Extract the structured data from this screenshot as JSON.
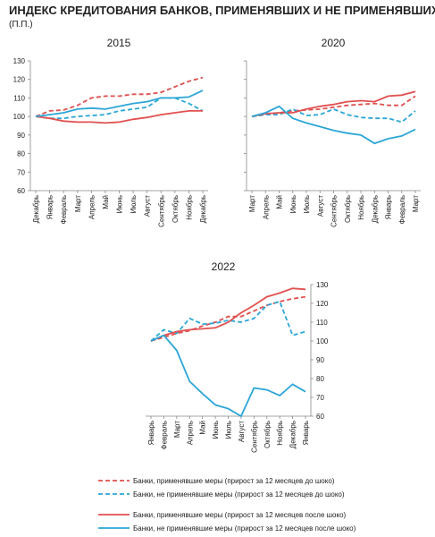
{
  "title": "ИНДЕКС КРЕДИТОВАНИЯ БАНКОВ, ПРИМЕНЯВШИХ И НЕ ПРИМЕНЯВШИХ МЕРЫ",
  "subtitle": "(П.П.)",
  "legend": [
    {
      "name": "Банки, применявшие меры (прирост за 12 месяцев до шоко)",
      "color": "#e0504f",
      "dashed": true
    },
    {
      "name": "Банки, не применявшие меры (прирост за 12 месяцев до шоко)",
      "color": "#2ba6d6",
      "dashed": true
    },
    {
      "name": "Банки, применявшие меры (прирост за 12 месяцев после шоко)",
      "color": "#e0504f",
      "dashed": false
    },
    {
      "name": "Банки, не применявшие меры (прирост за 12 месяцев после шоко)",
      "color": "#2ba6d6",
      "dashed": false
    }
  ],
  "chart_data": [
    {
      "type": "line",
      "title": "2015",
      "yaxis": "left",
      "ytick_labels": true,
      "categories": [
        "Декабрь",
        "Январь",
        "Февраль",
        "Март",
        "Апрель",
        "Май",
        "Июнь",
        "Июль",
        "Август",
        "Сентябрь",
        "Октябрь",
        "Ноябрь",
        "Декабрь"
      ],
      "ylim": [
        60,
        130
      ],
      "yticks": [
        60,
        70,
        80,
        90,
        100,
        110,
        120,
        130
      ],
      "series": [
        {
          "values": [
            100,
            103,
            103.5,
            106,
            110,
            111,
            111,
            112,
            112,
            113,
            116,
            119,
            121
          ]
        },
        {
          "values": [
            100,
            99,
            99,
            100,
            100.5,
            101,
            103,
            104,
            105,
            110,
            110,
            107,
            103
          ]
        },
        {
          "values": [
            100,
            99,
            97.5,
            97,
            97,
            96.5,
            97,
            98.5,
            99.5,
            101,
            102,
            103,
            103
          ]
        },
        {
          "values": [
            100,
            101,
            102,
            104,
            104.5,
            104,
            105.5,
            107,
            108,
            110,
            110,
            110.5,
            114
          ]
        }
      ]
    },
    {
      "type": "line",
      "title": "2020",
      "yaxis": "left",
      "ytick_labels": false,
      "categories": [
        "Март",
        "Апрель",
        "Май",
        "Июнь",
        "Июль",
        "Август",
        "Сентябрь",
        "Октябрь",
        "Ноябрь",
        "Декабрь",
        "Январь",
        "Февраль",
        "Март"
      ],
      "ylim": [
        60,
        130
      ],
      "yticks": [
        60,
        70,
        80,
        90,
        100,
        110,
        120,
        130
      ],
      "series": [
        {
          "values": [
            100,
            101,
            102,
            103,
            103.5,
            104,
            105,
            106,
            106.5,
            107,
            106,
            106,
            111
          ]
        },
        {
          "values": [
            100,
            101,
            101,
            104,
            100.5,
            101,
            104,
            101,
            99.5,
            99,
            99,
            97,
            103
          ]
        },
        {
          "values": [
            100,
            101.5,
            102,
            102,
            104,
            105.5,
            106.5,
            108,
            108.5,
            108,
            111,
            111.5,
            113.5
          ]
        },
        {
          "values": [
            100,
            102,
            105.5,
            99,
            96.5,
            94.5,
            92.5,
            91,
            90,
            85.5,
            88,
            89.5,
            93
          ]
        }
      ]
    },
    {
      "type": "line",
      "title": "2022",
      "yaxis": "right",
      "ytick_labels": true,
      "categories": [
        "Январь",
        "Февраль",
        "Март",
        "Апрель",
        "Май",
        "Июнь",
        "Июль",
        "Август",
        "Сентябрь",
        "Октябрь",
        "Ноябрь",
        "Декабрь",
        "Январь"
      ],
      "ylim": [
        60,
        130
      ],
      "yticks": [
        60,
        70,
        80,
        90,
        100,
        110,
        120,
        130
      ],
      "series": [
        {
          "values": [
            100,
            102,
            104,
            105.5,
            108,
            110,
            113,
            113,
            116,
            119,
            121,
            122.5,
            123.5
          ]
        },
        {
          "values": [
            100,
            106,
            104,
            112,
            109,
            109.5,
            111,
            110,
            112,
            119,
            121,
            103,
            105
          ]
        },
        {
          "values": [
            100,
            103,
            105,
            106,
            106.5,
            107,
            110,
            115,
            119,
            123.5,
            125.5,
            128,
            127.5
          ]
        },
        {
          "values": [
            100,
            103,
            95,
            78.5,
            72,
            66,
            64,
            60,
            75,
            74,
            71,
            77,
            73
          ]
        }
      ]
    }
  ]
}
